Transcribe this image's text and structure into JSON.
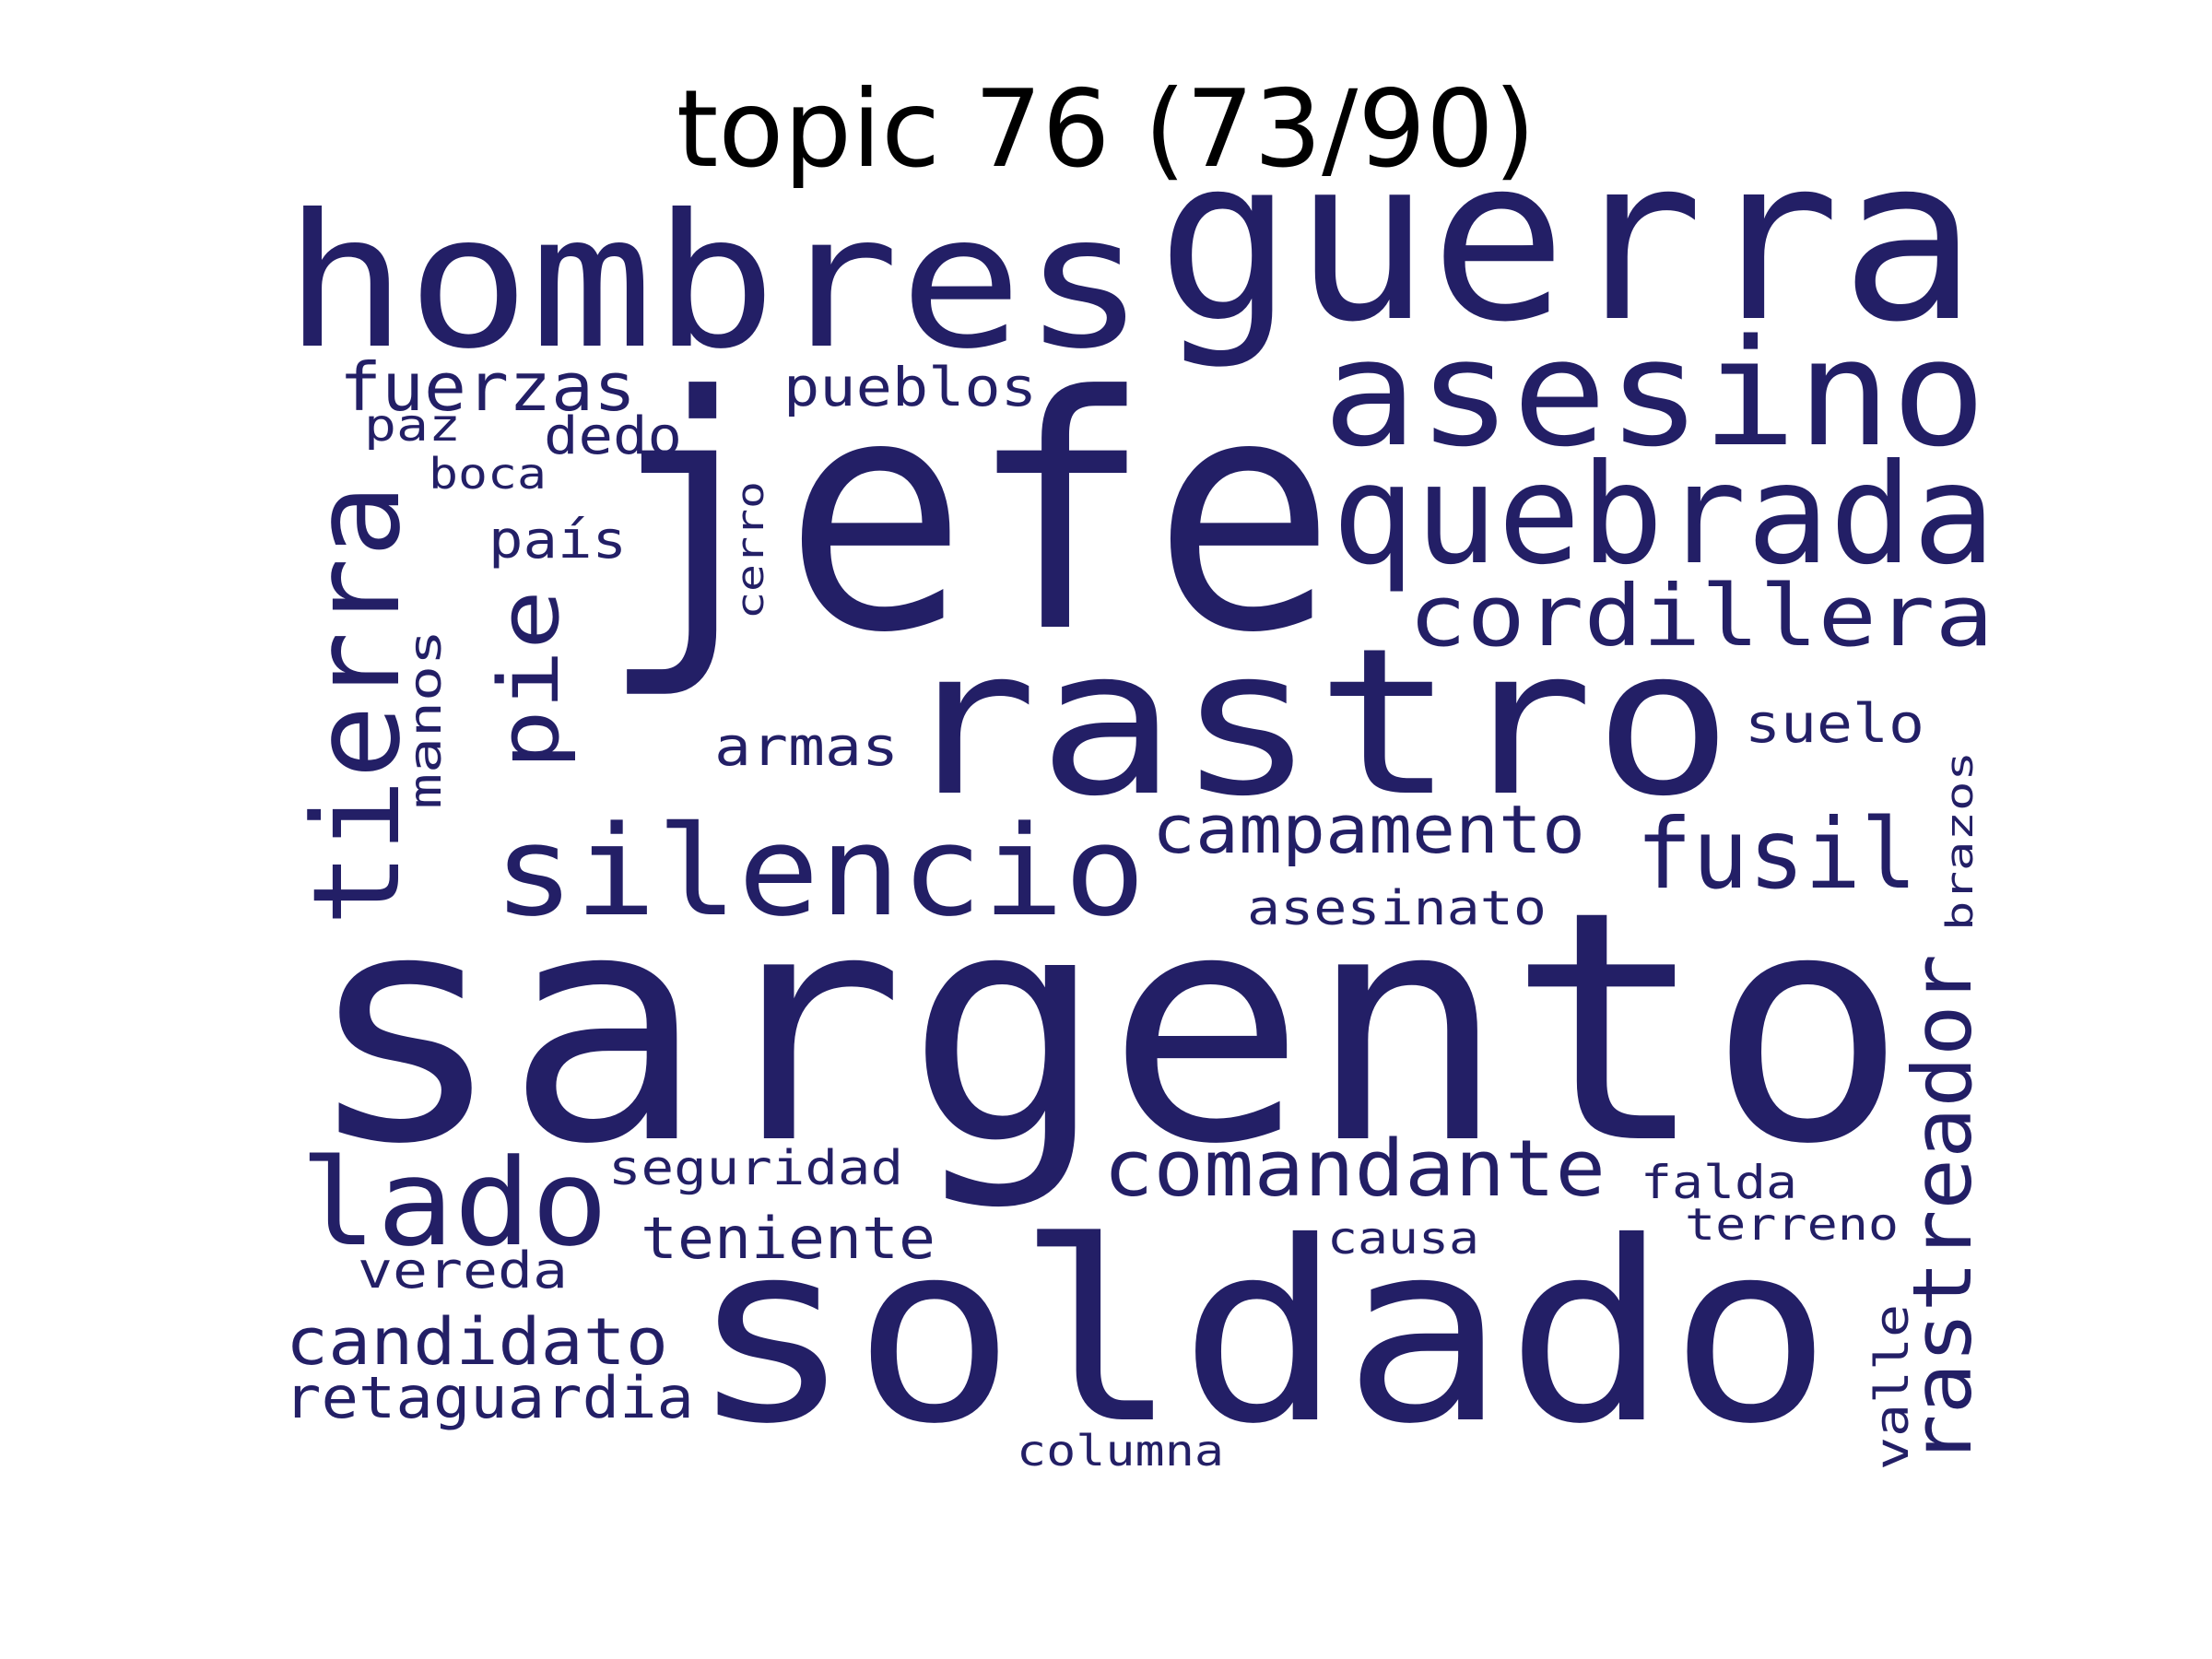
{
  "title": "topic 76 (73/90)",
  "colors": {
    "word": "#231f66",
    "title": "#000000",
    "background": "#ffffff"
  },
  "words": [
    {
      "text": "sargento"
    },
    {
      "text": "jefe"
    },
    {
      "text": "soldado"
    },
    {
      "text": "guerra"
    },
    {
      "text": "hombres"
    },
    {
      "text": "rastro"
    },
    {
      "text": "asesino"
    },
    {
      "text": "quebrada"
    },
    {
      "text": "silencio"
    },
    {
      "text": "tierra"
    },
    {
      "text": "lado"
    },
    {
      "text": "rastreador"
    },
    {
      "text": "cordillera"
    },
    {
      "text": "fusil"
    },
    {
      "text": "comandante"
    },
    {
      "text": "pie"
    },
    {
      "text": "campamento"
    },
    {
      "text": "candidato"
    },
    {
      "text": "fuerzas"
    },
    {
      "text": "teniente"
    },
    {
      "text": "retaguardia"
    },
    {
      "text": "pueblos"
    },
    {
      "text": "armas"
    },
    {
      "text": "suelo"
    },
    {
      "text": "asesinato"
    },
    {
      "text": "seguridad"
    },
    {
      "text": "vereda"
    },
    {
      "text": "dedo"
    },
    {
      "text": "país"
    },
    {
      "text": "manos"
    },
    {
      "text": "falda"
    },
    {
      "text": "valle"
    },
    {
      "text": "causa"
    },
    {
      "text": "terreno"
    },
    {
      "text": "paz"
    },
    {
      "text": "columna"
    },
    {
      "text": "boca"
    },
    {
      "text": "brazos"
    },
    {
      "text": "cerro"
    }
  ]
}
